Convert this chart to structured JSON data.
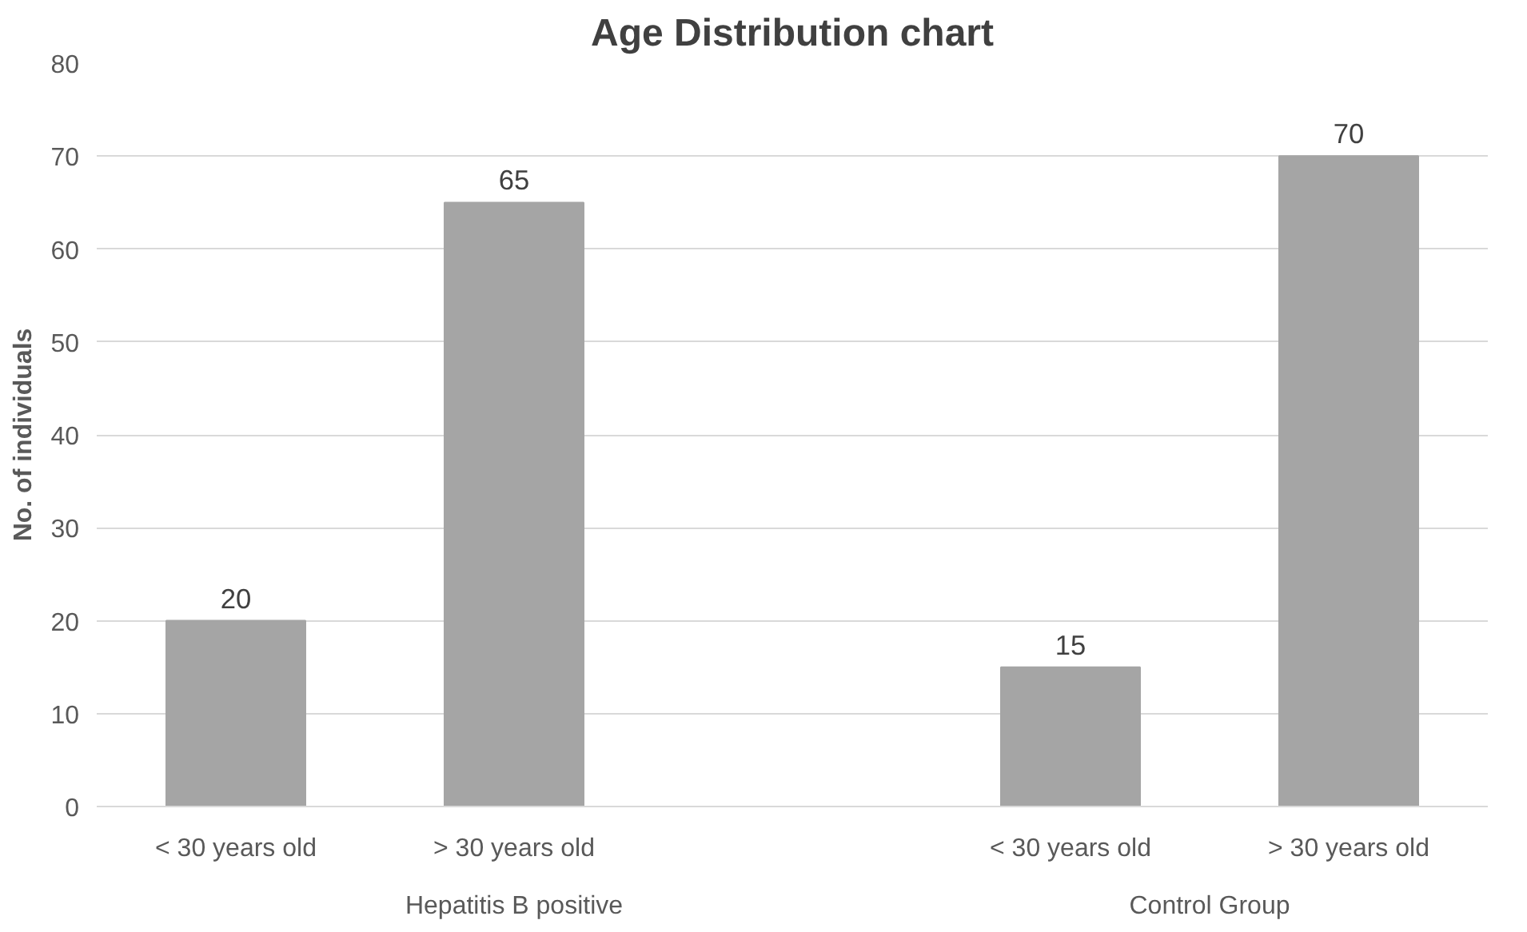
{
  "chart_data": {
    "type": "bar",
    "title": "Age Distribution chart",
    "ylabel": "No. of individuals",
    "categories": [
      "< 30 years old",
      "> 30 years old",
      null,
      "< 30 years old",
      "> 30 years old"
    ],
    "values": [
      20,
      65,
      null,
      15,
      70
    ],
    "color": "#a5a5a5",
    "annotations": [
      "Hepatitis B positive",
      "Control Group"
    ],
    "ylim": [
      0,
      80
    ],
    "yticks": [
      0,
      10,
      20,
      30,
      40,
      50,
      60,
      70,
      80
    ],
    "grid": "y",
    "data_labels": true
  }
}
